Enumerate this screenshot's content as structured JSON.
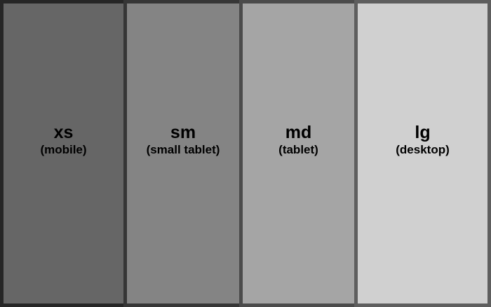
{
  "breakpoints": [
    {
      "name": "xs",
      "description": "(mobile)",
      "fill": "#666666",
      "border": "#262626"
    },
    {
      "name": "sm",
      "description": "(small tablet)",
      "fill": "#848484",
      "border": "#363636"
    },
    {
      "name": "md",
      "description": "(tablet)",
      "fill": "#a5a5a5",
      "border": "#4b4b4b"
    },
    {
      "name": "lg",
      "description": "(desktop)",
      "fill": "#d0d0d0",
      "border": "#5e5e5e"
    }
  ]
}
